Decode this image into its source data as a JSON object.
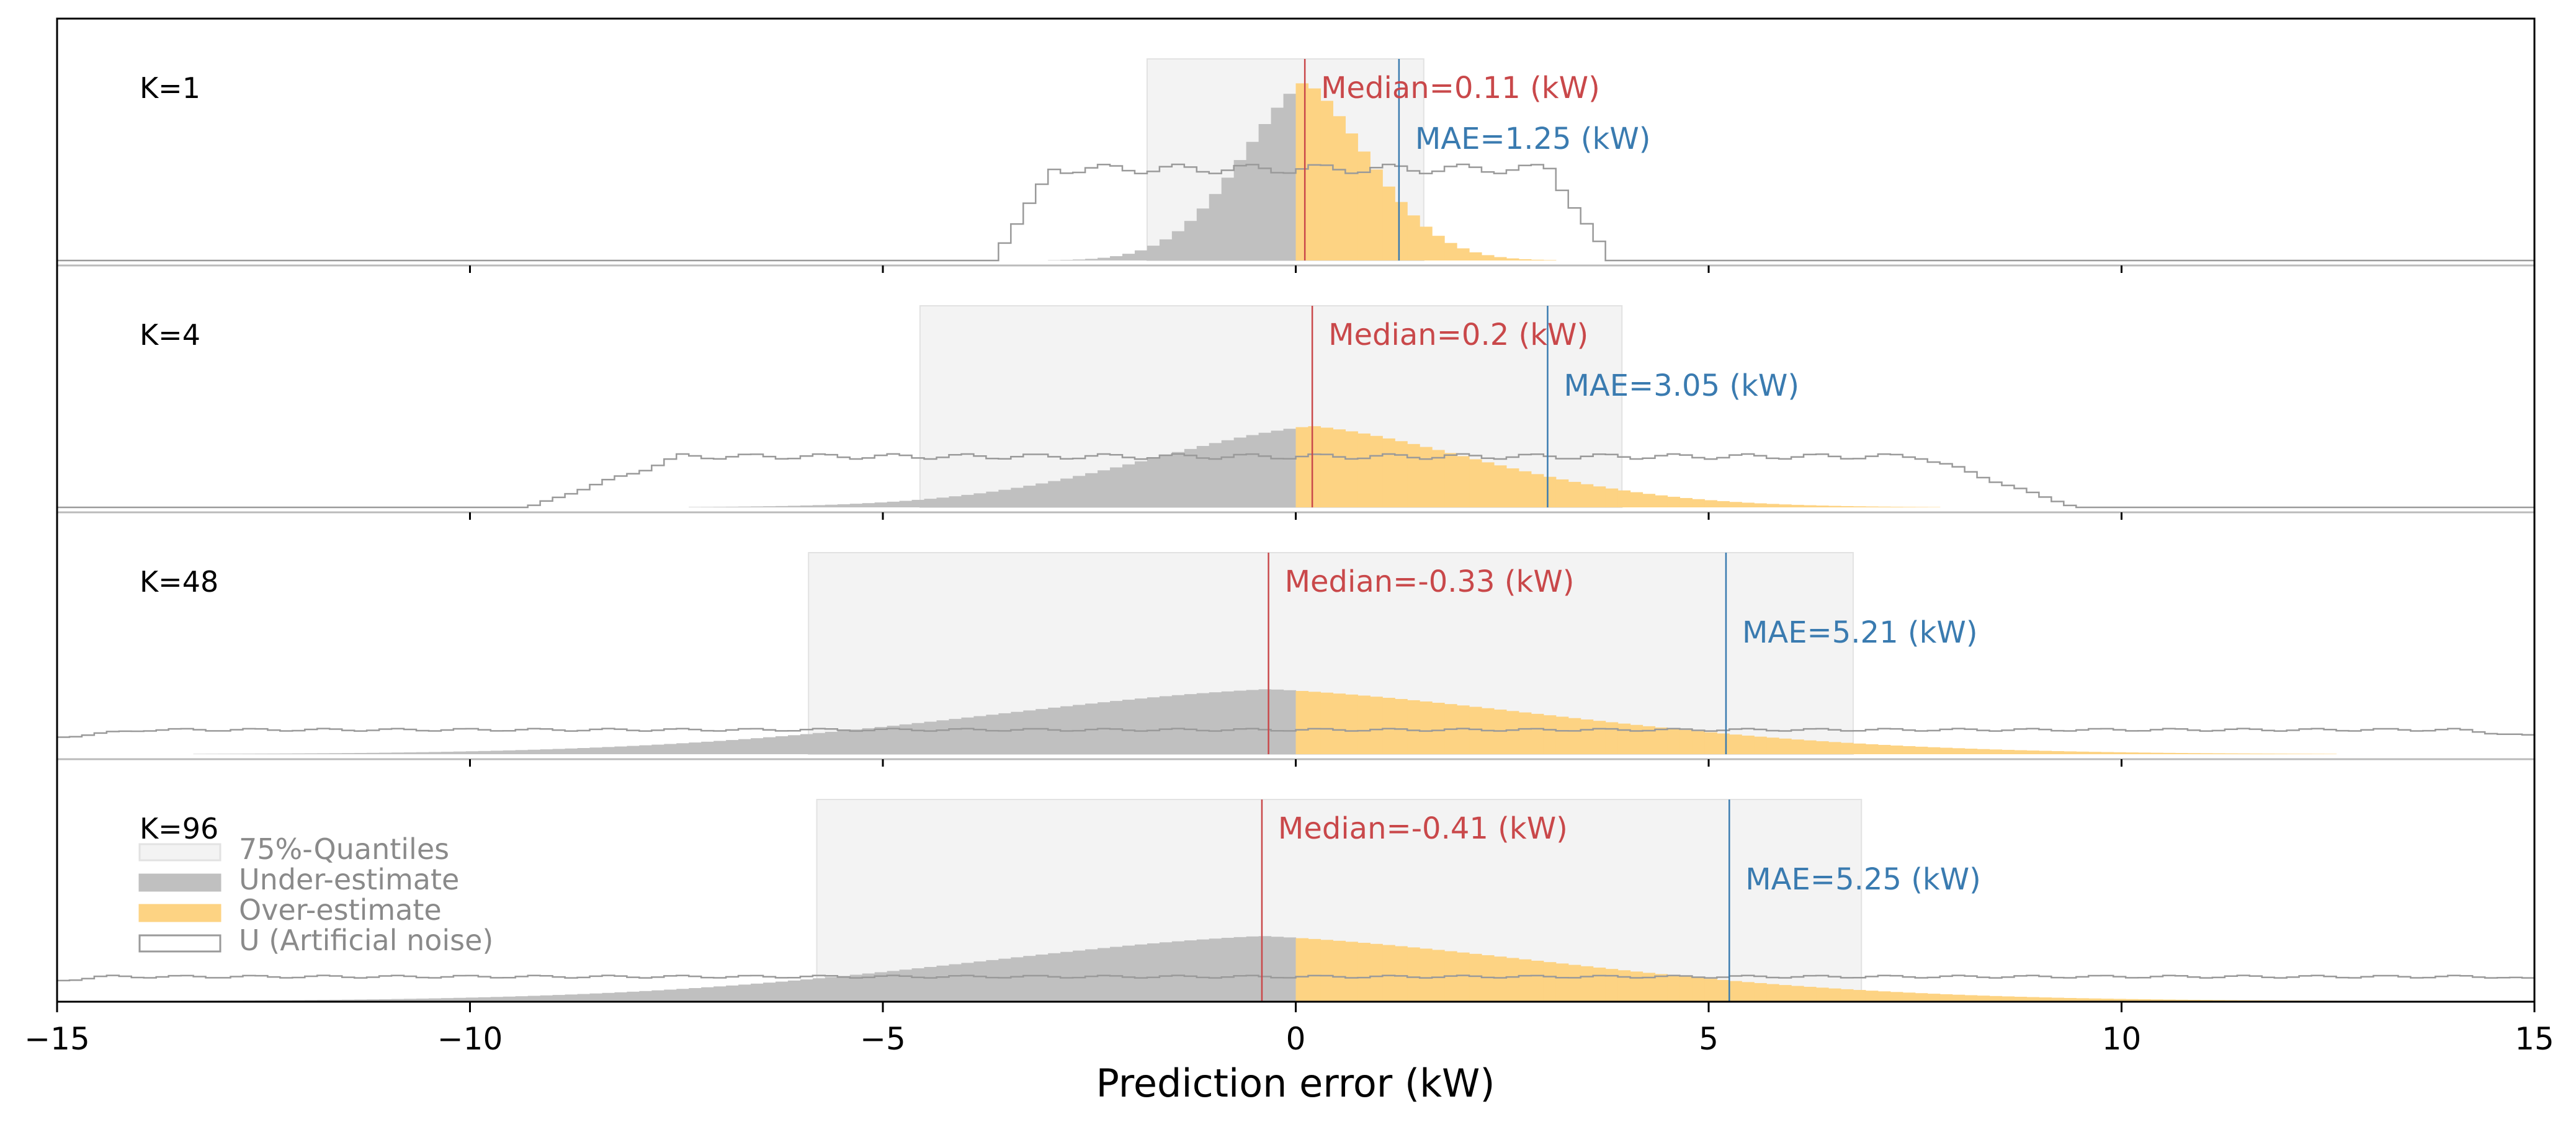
{
  "chart_data": {
    "type": "histogram",
    "xlabel": "Prediction error (kW)",
    "xlim": [
      -15,
      15
    ],
    "xticks": [
      -15,
      -10,
      -5,
      0,
      5,
      10,
      15
    ],
    "xtick_labels": [
      "−15",
      "−10",
      "−5",
      "0",
      "5",
      "10",
      "15"
    ],
    "colors": {
      "under": "#c0c0c0",
      "over": "#fdd383",
      "noise": "#9a9a9a",
      "quantile": "#f3f3f3",
      "median": "#c9484a",
      "mae": "#3a7bb0"
    },
    "legend": {
      "placement": "lower-left of bottom panel",
      "items": [
        {
          "key": "quantile",
          "label": "75%-Quantiles"
        },
        {
          "key": "under",
          "label": "Under-estimate"
        },
        {
          "key": "over",
          "label": "Over-estimate"
        },
        {
          "key": "noise",
          "label": "U (Artificial noise)"
        }
      ]
    },
    "panels": [
      {
        "label": "K=1",
        "median": 0.11,
        "median_text": "Median=0.11 (kW)",
        "mae": 1.25,
        "mae_text": "MAE=1.25 (kW)",
        "q_low": -1.8,
        "q_high": 1.55,
        "spread": 0.9,
        "peak": 0.88,
        "noise_halfwidth": 3.0,
        "noise_level": 0.45
      },
      {
        "label": "K=4",
        "median": 0.2,
        "median_text": "Median=0.2 (kW)",
        "mae": 3.05,
        "mae_text": "MAE=3.05 (kW)",
        "q_low": -4.55,
        "q_high": 3.95,
        "spread": 2.4,
        "peak": 0.4,
        "noise_halfwidth": 7.5,
        "noise_level": 0.25
      },
      {
        "label": "K=48",
        "median": -0.33,
        "median_text": "Median=-0.33 (kW)",
        "mae": 5.21,
        "mae_text": "MAE=5.21 (kW)",
        "q_low": -5.9,
        "q_high": 6.75,
        "spread": 4.2,
        "peak": 0.32,
        "noise_halfwidth": 14.0,
        "noise_level": 0.12
      },
      {
        "label": "K=96",
        "median": -0.41,
        "median_text": "Median=-0.41 (kW)",
        "mae": 5.25,
        "mae_text": "MAE=5.25 (kW)",
        "q_low": -5.8,
        "q_high": 6.85,
        "spread": 4.3,
        "peak": 0.32,
        "noise_halfwidth": 14.5,
        "noise_level": 0.12
      }
    ]
  }
}
